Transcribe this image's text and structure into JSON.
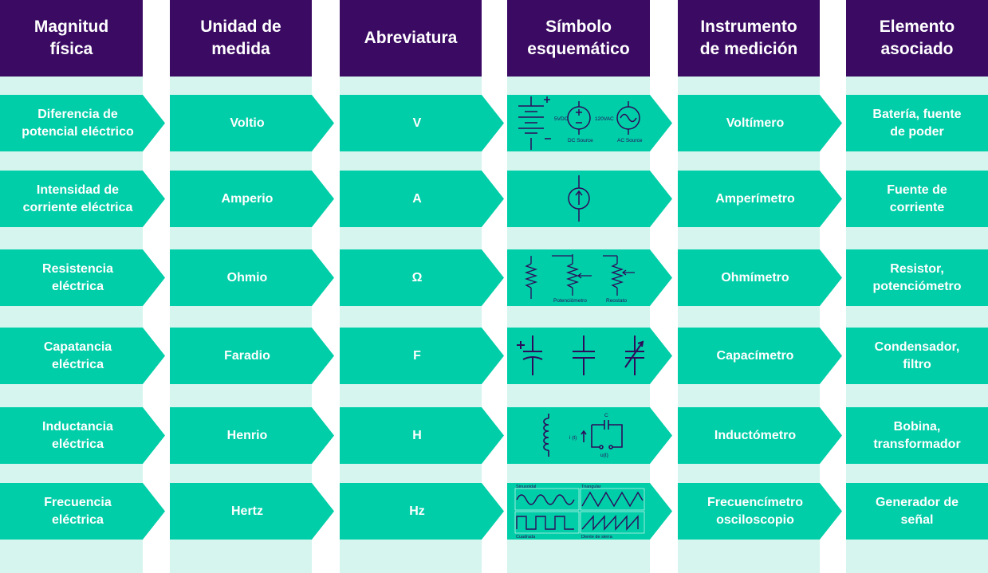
{
  "colors": {
    "header_bg": "#3b0a63",
    "row_bg": "#00cea8",
    "column_bg": "#d6f5ee",
    "symbol_stroke": "#2d0b5a"
  },
  "headers": [
    "Magnitud\nfísica",
    "Unidad de\nmedida",
    "Abreviatura",
    "Símbolo\nesquemático",
    "Instrumento\nde medición",
    "Elemento\nasociado"
  ],
  "rows": [
    {
      "magnitude": "Diferencia de\npotencial eléctrico",
      "unit": "Voltio",
      "abbr": "V",
      "symbol": "battery-dc-ac-source-icon",
      "instrument": "Voltímero",
      "element": "Batería, fuente\nde poder"
    },
    {
      "magnitude": "Intensidad de\ncorriente eléctrica",
      "unit": "Amperio",
      "abbr": "A",
      "symbol": "current-source-icon",
      "instrument": "Amperímetro",
      "element": "Fuente de\ncorriente"
    },
    {
      "magnitude": "Resistencia\neléctrica",
      "unit": "Ohmio",
      "abbr": "Ω",
      "symbol": "resistor-potentiometer-rheostat-icon",
      "instrument": "Ohmímetro",
      "element": "Resistor,\npotenciómetro"
    },
    {
      "magnitude": "Capatancia\neléctrica",
      "unit": "Faradio",
      "abbr": "F",
      "symbol": "capacitor-icon",
      "instrument": "Capacímetro",
      "element": "Condensador,\nfiltro"
    },
    {
      "magnitude": "Inductancia\neléctrica",
      "unit": "Henrio",
      "abbr": "H",
      "symbol": "inductor-icon",
      "instrument": "Inductómetro",
      "element": "Bobina,\ntransformador"
    },
    {
      "magnitude": "Frecuencia\neléctrica",
      "unit": "Hertz",
      "abbr": "Hz",
      "symbol": "waveforms-icon",
      "instrument": "Frecuencímetro\nosciloscopio",
      "element": "Generador de\nseñal"
    }
  ],
  "symbol_labels": {
    "v_dc": "5VDC",
    "v_ac": "120VAC",
    "dc_source": "DC Source",
    "ac_source": "AC Source",
    "potenciometro": "Potenciómetro",
    "reostato": "Reostato",
    "i_t": "i (t)",
    "cap_c": "C",
    "u_t": "u(t)",
    "senoidal": "Sinusoidal",
    "triangular": "Triangular",
    "cuadrada": "Cuadrada",
    "diente": "Diente de sierra"
  }
}
